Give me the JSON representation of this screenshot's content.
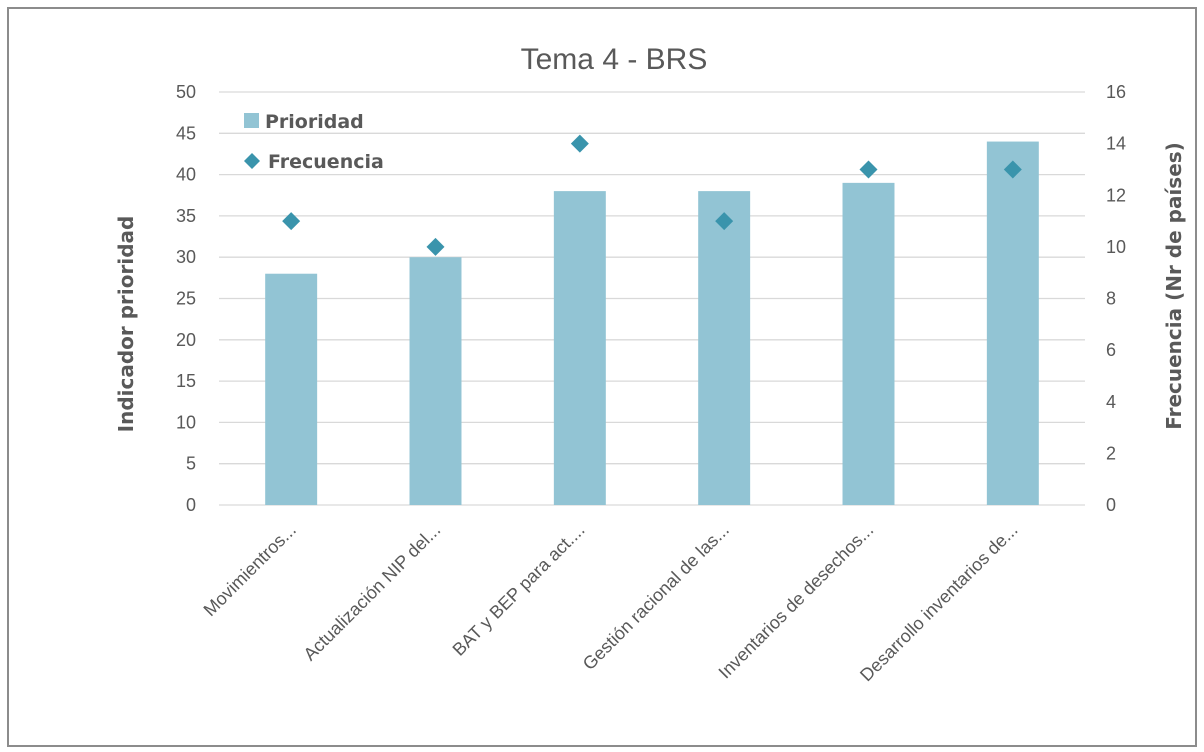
{
  "chart_data": {
    "type": "bar",
    "title": "Tema 4 - BRS",
    "categories": [
      "Movimientros...",
      "Actualización NIP del...",
      "BAT y BEP para act....",
      "Gestión racional de las...",
      "Inventarios de desechos...",
      "Desarrollo inventarios de..."
    ],
    "series": [
      {
        "name": "Prioridad",
        "type": "bar",
        "axis": "left",
        "color": "#92c4d4",
        "values": [
          28,
          30,
          38,
          38,
          39,
          44
        ]
      },
      {
        "name": "Frecuencia",
        "type": "scatter",
        "marker": "diamond",
        "axis": "right",
        "color": "#3a94ac",
        "values": [
          11,
          10,
          14,
          11,
          13,
          13
        ]
      }
    ],
    "ylabel": "Indicador prioridad",
    "y2label": "Frecuencia (Nr de países)",
    "ylim": [
      0,
      50
    ],
    "y2lim": [
      0,
      16
    ],
    "yticks": [
      "0",
      "5",
      "10",
      "15",
      "20",
      "25",
      "30",
      "35",
      "40",
      "45",
      "50"
    ],
    "y2ticks": [
      "0",
      "2",
      "4",
      "6",
      "8",
      "10",
      "12",
      "14",
      "16"
    ],
    "grid": true,
    "legend_position": "top-left"
  }
}
